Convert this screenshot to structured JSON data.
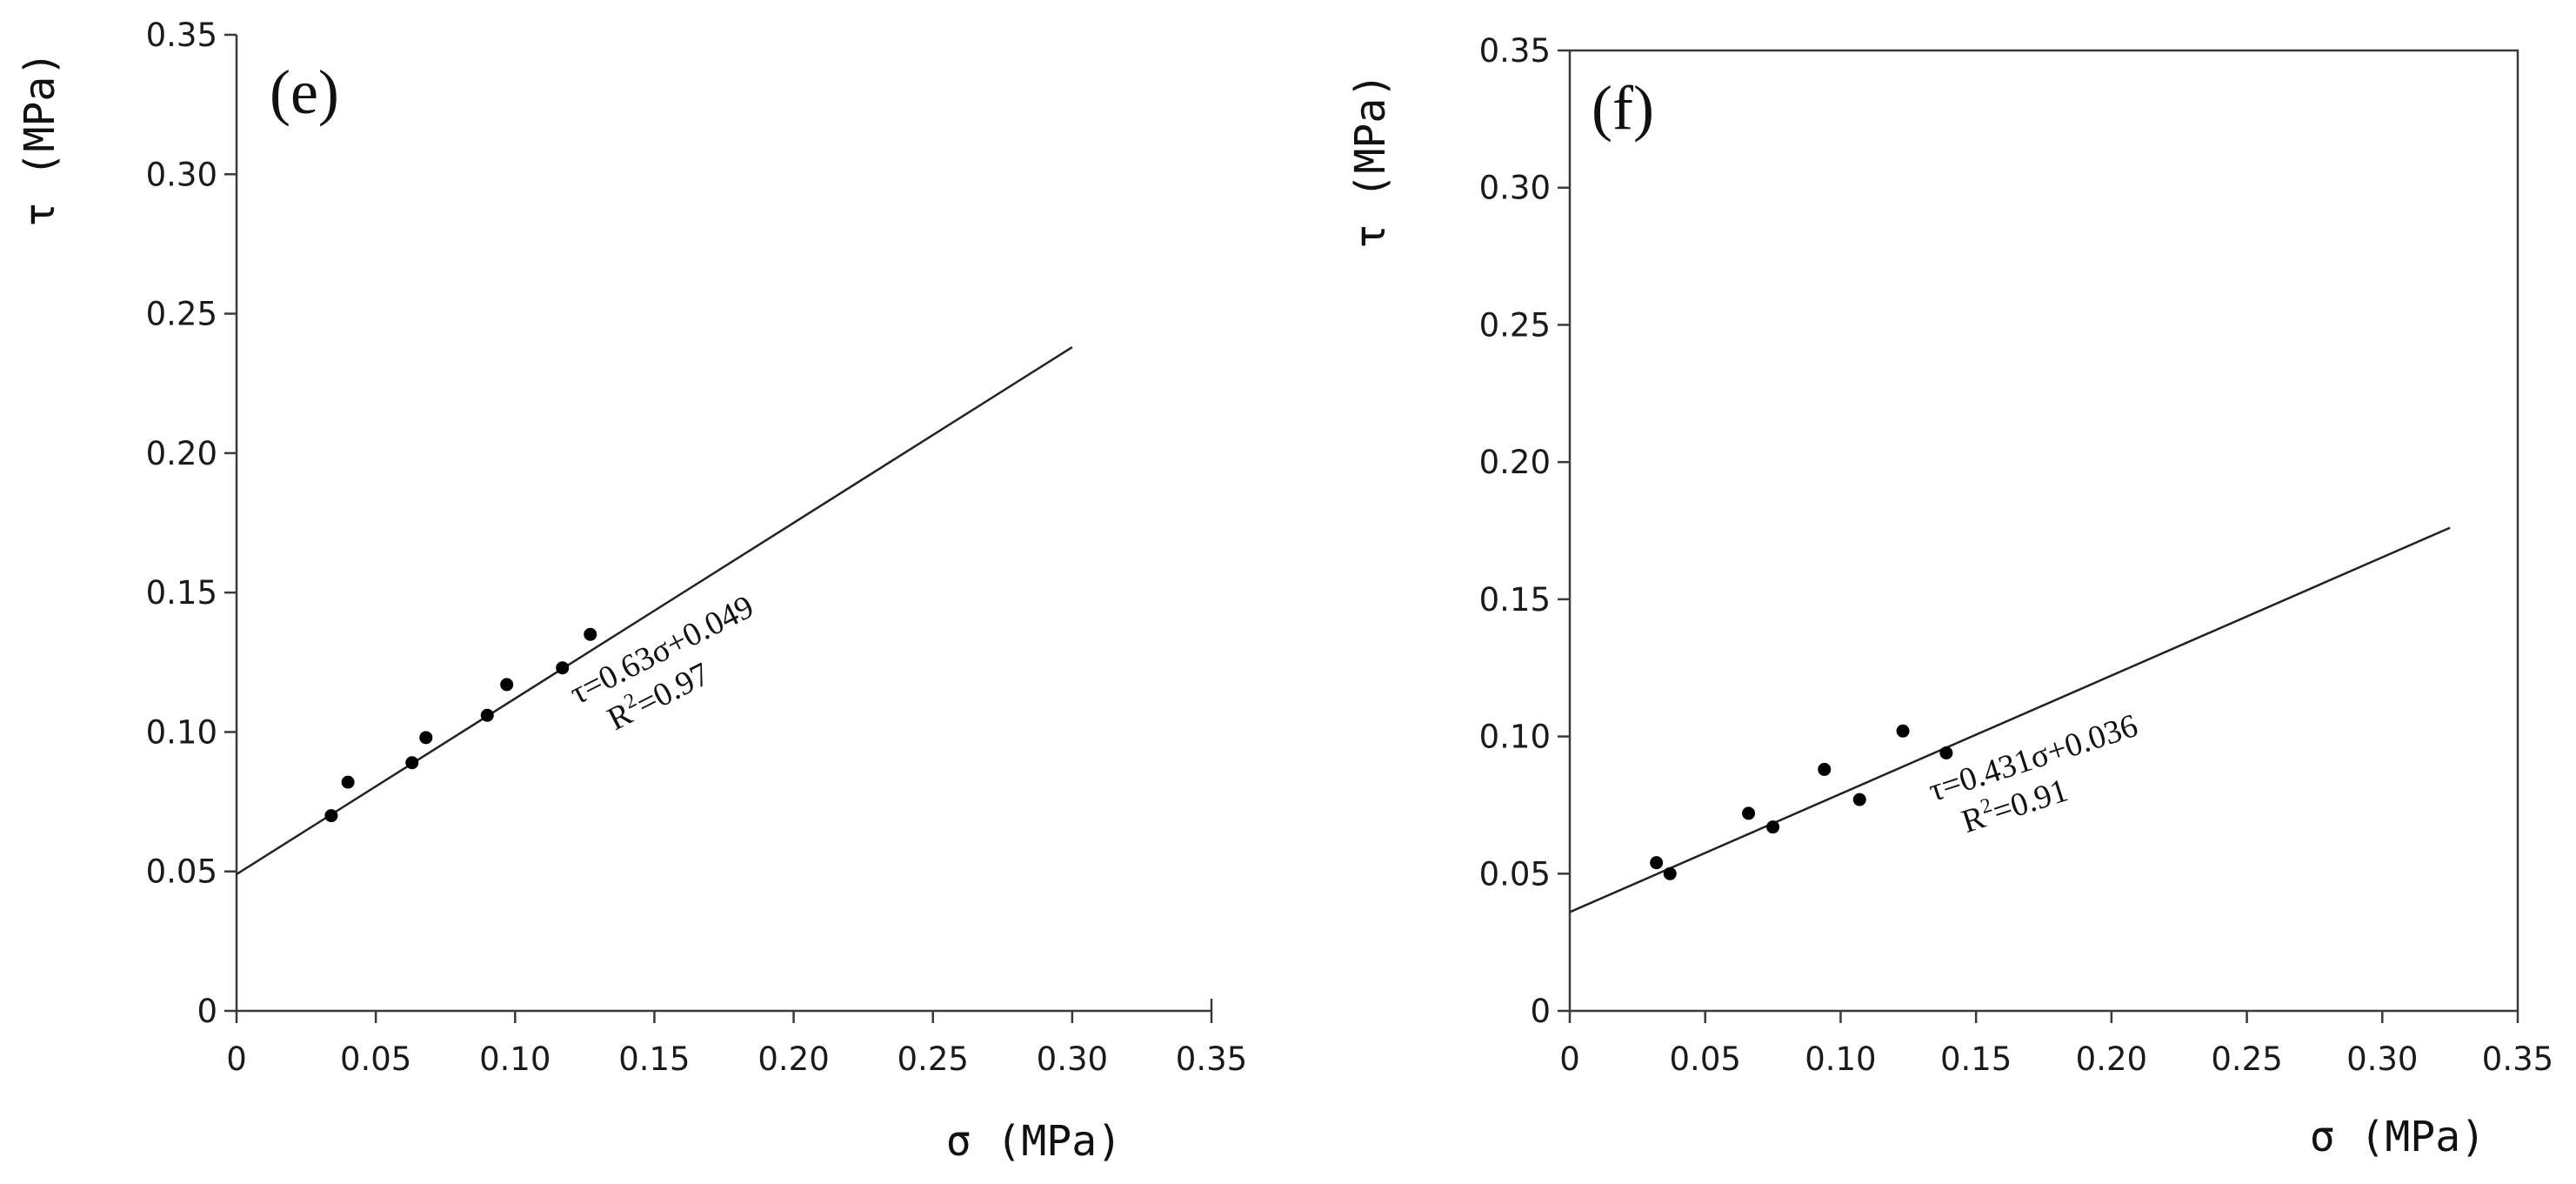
{
  "chart_data": [
    {
      "type": "scatter",
      "panel_label": "(e)",
      "xlabel": "σ (MPa)",
      "ylabel": "τ (MPa)",
      "xlim": [
        0,
        0.35
      ],
      "ylim": [
        0,
        0.35
      ],
      "x_ticks": [
        "0",
        "0.05",
        "0.10",
        "0.15",
        "0.20",
        "0.25",
        "0.30",
        "0.35"
      ],
      "y_ticks": [
        "0",
        "0.05",
        "0.10",
        "0.15",
        "0.20",
        "0.25",
        "0.30",
        "0.35"
      ],
      "points": [
        {
          "x": 0.034,
          "y": 0.07
        },
        {
          "x": 0.04,
          "y": 0.082
        },
        {
          "x": 0.063,
          "y": 0.089
        },
        {
          "x": 0.068,
          "y": 0.098
        },
        {
          "x": 0.09,
          "y": 0.106
        },
        {
          "x": 0.097,
          "y": 0.117
        },
        {
          "x": 0.117,
          "y": 0.123
        },
        {
          "x": 0.127,
          "y": 0.135
        }
      ],
      "fit": {
        "slope": 0.63,
        "intercept": 0.049,
        "x_range": [
          0,
          0.3
        ]
      },
      "equation": "τ=0.63σ+0.049",
      "r2_prefix": "R",
      "r2_exp": "2",
      "r2_value": "=0.97"
    },
    {
      "type": "scatter",
      "panel_label": "(f)",
      "xlabel": "σ (MPa)",
      "ylabel": "τ (MPa)",
      "xlim": [
        0,
        0.35
      ],
      "ylim": [
        0,
        0.35
      ],
      "x_ticks": [
        "0",
        "0.05",
        "0.10",
        "0.15",
        "0.20",
        "0.25",
        "0.30",
        "0.35"
      ],
      "y_ticks": [
        "0",
        "0.05",
        "0.10",
        "0.15",
        "0.20",
        "0.25",
        "0.30",
        "0.35"
      ],
      "points": [
        {
          "x": 0.032,
          "y": 0.054
        },
        {
          "x": 0.037,
          "y": 0.05
        },
        {
          "x": 0.066,
          "y": 0.072
        },
        {
          "x": 0.075,
          "y": 0.067
        },
        {
          "x": 0.094,
          "y": 0.088
        },
        {
          "x": 0.107,
          "y": 0.077
        },
        {
          "x": 0.123,
          "y": 0.102
        },
        {
          "x": 0.139,
          "y": 0.094
        }
      ],
      "fit": {
        "slope": 0.431,
        "intercept": 0.036,
        "x_range": [
          0,
          0.325
        ]
      },
      "equation": "τ=0.431σ+0.036",
      "r2_prefix": "R",
      "r2_exp": "2",
      "r2_value": "=0.91"
    }
  ]
}
